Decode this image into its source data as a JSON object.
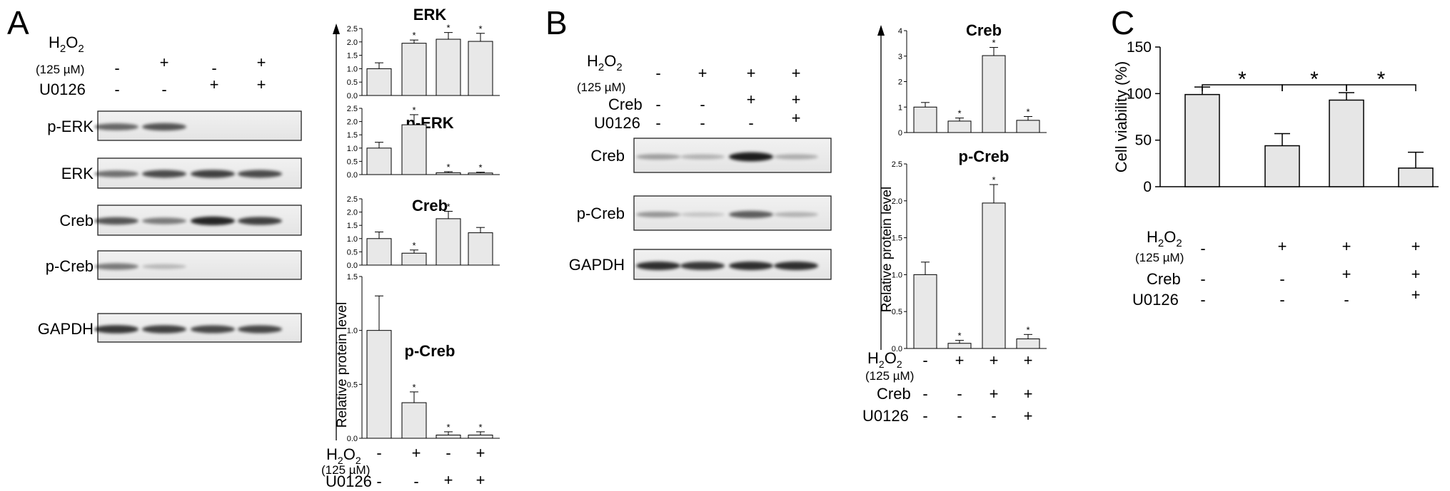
{
  "panels": {
    "a": {
      "letter": "A",
      "conditions": {
        "rows": [
          {
            "label": "H2O2",
            "sub": "(125 µM)",
            "signs": [
              "-",
              "+",
              "-",
              "+"
            ]
          },
          {
            "label": "U0126",
            "signs": [
              "-",
              "-",
              "+",
              "+"
            ]
          }
        ]
      },
      "blot_labels": [
        "p-ERK",
        "ERK",
        "Creb",
        "p-Creb",
        "GAPDH"
      ],
      "ylabel": "Relative protein level",
      "chart_conditions": [
        {
          "label": "H2O2",
          "sub": "(125 µM)",
          "signs": [
            "-",
            "+",
            "-",
            "+"
          ]
        },
        {
          "label": "U0126",
          "signs": [
            "-",
            "-",
            "+",
            "+"
          ]
        }
      ]
    },
    "b": {
      "letter": "B",
      "conditions": {
        "rows": [
          {
            "label": "H2O2",
            "sub": "(125 µM)",
            "signs": [
              "-",
              "+",
              "+",
              "+"
            ]
          },
          {
            "label": "Creb",
            "signs": [
              "-",
              "-",
              "+",
              "+"
            ]
          },
          {
            "label": "U0126",
            "signs": [
              "-",
              "-",
              "-",
              "+"
            ]
          }
        ]
      },
      "blot_labels": [
        "Creb",
        "p-Creb",
        "GAPDH"
      ],
      "ylabel": "Relative protein level",
      "chart_conditions": [
        {
          "label": "H2O2",
          "sub": "(125 µM)",
          "signs": [
            "-",
            "+",
            "+",
            "+"
          ]
        },
        {
          "label": "Creb",
          "signs": [
            "-",
            "-",
            "+",
            "+"
          ]
        },
        {
          "label": "U0126",
          "signs": [
            "-",
            "-",
            "-",
            "+"
          ]
        }
      ]
    },
    "c": {
      "letter": "C",
      "ylabel": "Cell viability (%)",
      "conditions": [
        {
          "label": "H2O2",
          "sub": "(125 µM)",
          "signs": [
            "-",
            "+",
            "+",
            "+"
          ]
        },
        {
          "label": "Creb",
          "signs": [
            "-",
            "-",
            "+",
            "+"
          ]
        },
        {
          "label": "U0126",
          "signs": [
            "-",
            "-",
            "-",
            "+"
          ]
        }
      ],
      "brackets": [
        "*",
        "*",
        "*"
      ]
    }
  },
  "chart_data": [
    {
      "type": "bar",
      "title": "ERK",
      "values": [
        1.0,
        1.95,
        2.1,
        2.02
      ],
      "errors": [
        0.22,
        0.12,
        0.25,
        0.3
      ],
      "ylim": [
        0,
        2.5
      ],
      "yticks": [
        "0.0",
        "0.5",
        "1.0",
        "1.5",
        "2.0",
        "2.5"
      ],
      "stars": [
        "",
        "*",
        "*",
        "*"
      ]
    },
    {
      "type": "bar",
      "title": "p-ERK",
      "values": [
        1.0,
        1.88,
        0.07,
        0.06
      ],
      "errors": [
        0.22,
        0.38,
        0.04,
        0.03
      ],
      "ylim": [
        0,
        2.5
      ],
      "yticks": [
        "0.0",
        "0.5",
        "1.0",
        "1.5",
        "2.0",
        "2.5"
      ],
      "stars": [
        "",
        "*",
        "*",
        "*"
      ]
    },
    {
      "type": "bar",
      "title": "Creb",
      "values": [
        1.0,
        0.45,
        1.75,
        1.22
      ],
      "errors": [
        0.25,
        0.12,
        0.28,
        0.2
      ],
      "ylim": [
        0,
        2.5
      ],
      "yticks": [
        "0.0",
        "0.5",
        "1.0",
        "1.5",
        "2.0",
        "2.5"
      ],
      "stars": [
        "",
        "*",
        "*",
        ""
      ]
    },
    {
      "type": "bar",
      "title": "p-Creb",
      "values": [
        1.0,
        0.33,
        0.03,
        0.03
      ],
      "errors": [
        0.32,
        0.1,
        0.03,
        0.03
      ],
      "ylim": [
        0,
        1.5
      ],
      "yticks": [
        "0.0",
        "0.5",
        "1.0",
        "1.5"
      ],
      "stars": [
        "",
        "*",
        "*",
        "*"
      ]
    },
    {
      "type": "bar",
      "title": "Creb",
      "values": [
        1.0,
        0.45,
        3.02,
        0.48
      ],
      "errors": [
        0.18,
        0.12,
        0.32,
        0.15
      ],
      "ylim": [
        0,
        4
      ],
      "yticks": [
        "0",
        "1",
        "2",
        "3",
        "4"
      ],
      "stars": [
        "",
        "*",
        "*",
        "*"
      ]
    },
    {
      "type": "bar",
      "title": "p-Creb",
      "values": [
        1.0,
        0.07,
        1.97,
        0.13
      ],
      "errors": [
        0.17,
        0.04,
        0.25,
        0.06
      ],
      "ylim": [
        0,
        2.5
      ],
      "yticks": [
        "0.0",
        "0.5",
        "1.0",
        "1.5",
        "2.0",
        "2.5"
      ],
      "stars": [
        "",
        "*",
        "*",
        "*"
      ]
    },
    {
      "type": "bar",
      "values": [
        99,
        44,
        93,
        20
      ],
      "errors": [
        8,
        13,
        8,
        17
      ],
      "ylim": [
        0,
        150
      ],
      "yticks": [
        "0",
        "50",
        "100",
        "150"
      ],
      "ylabel": "Cell viability (%)",
      "stars": []
    }
  ]
}
